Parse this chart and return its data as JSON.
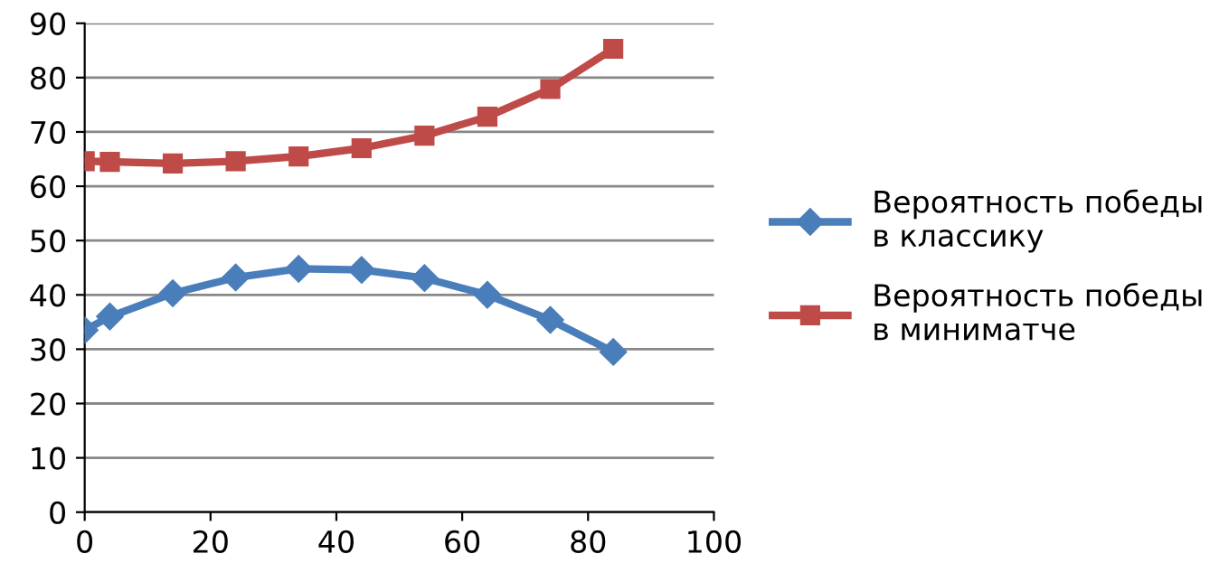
{
  "chart_data": {
    "type": "line",
    "x": [
      0,
      4,
      14,
      24,
      34,
      44,
      54,
      64,
      74,
      84
    ],
    "series": [
      {
        "name": "Вероятность победы\nв классику",
        "color": "#4a7ebb",
        "marker": "diamond",
        "values": [
          33.5,
          36,
          40.3,
          43.2,
          44.8,
          44.6,
          43.1,
          40,
          35.4,
          29.5
        ]
      },
      {
        "name": "Вероятность победы\nв миниматче",
        "color": "#be4b48",
        "marker": "square",
        "values": [
          64.6,
          64.5,
          64.2,
          64.6,
          65.5,
          67,
          69.3,
          72.8,
          77.9,
          85.3
        ]
      }
    ],
    "xlim": [
      0,
      100
    ],
    "xticks": [
      0,
      20,
      40,
      60,
      80,
      100
    ],
    "ylim": [
      0,
      90
    ],
    "yticks": [
      0,
      10,
      20,
      30,
      40,
      50,
      60,
      70,
      80,
      90
    ],
    "grid": "y",
    "legend": "right",
    "line_style": "solid"
  }
}
